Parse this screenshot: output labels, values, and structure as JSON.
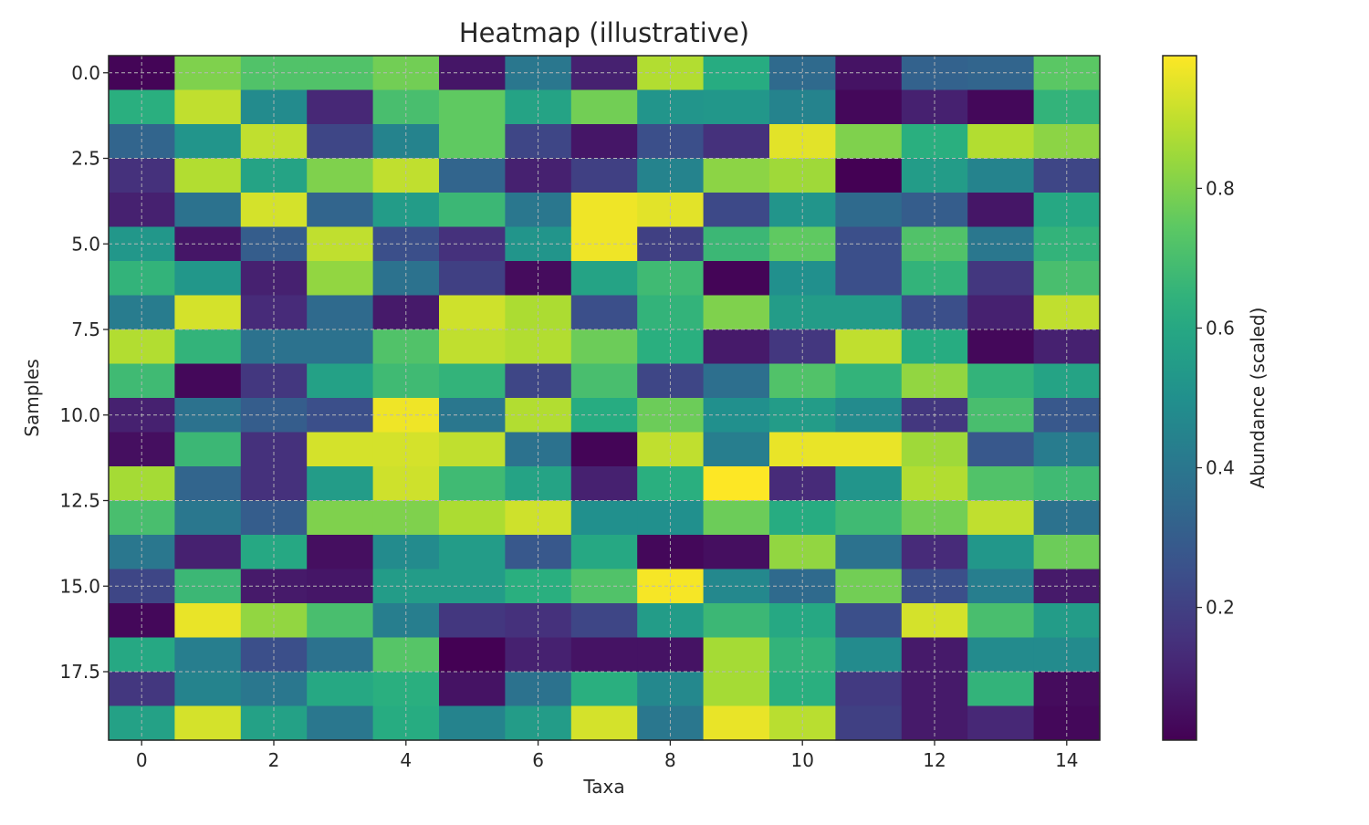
{
  "chart_data": {
    "type": "heatmap",
    "title": "Heatmap (illustrative)",
    "xlabel": "Taxa",
    "ylabel": "Samples",
    "colorbar_label": "Abundance (scaled)",
    "colormap": "viridis",
    "grid": true,
    "n_cols": 15,
    "n_rows": 20,
    "x_ticks": [
      0,
      2,
      4,
      6,
      8,
      10,
      12,
      14
    ],
    "y_ticks": [
      0.0,
      2.5,
      5.0,
      7.5,
      10.0,
      12.5,
      15.0,
      17.5
    ],
    "x_tick_labels": [
      "0",
      "2",
      "4",
      "6",
      "8",
      "10",
      "12",
      "14"
    ],
    "y_tick_labels": [
      "0.0",
      "2.5",
      "5.0",
      "7.5",
      "10.0",
      "12.5",
      "15.0",
      "17.5"
    ],
    "colorbar_ticks": [
      0.2,
      0.4,
      0.6,
      0.8
    ],
    "colorbar_tick_labels": [
      "0.2",
      "0.4",
      "0.6",
      "0.8"
    ],
    "colorbar_range": [
      0.01,
      0.99
    ],
    "values": [
      [
        0.02,
        0.8,
        0.72,
        0.72,
        0.78,
        0.07,
        0.4,
        0.1,
        0.88,
        0.62,
        0.35,
        0.06,
        0.32,
        0.33,
        0.74
      ],
      [
        0.63,
        0.9,
        0.48,
        0.12,
        0.7,
        0.75,
        0.58,
        0.78,
        0.52,
        0.53,
        0.45,
        0.03,
        0.1,
        0.03,
        0.65
      ],
      [
        0.33,
        0.52,
        0.9,
        0.22,
        0.45,
        0.75,
        0.22,
        0.07,
        0.25,
        0.15,
        0.95,
        0.8,
        0.63,
        0.88,
        0.82
      ],
      [
        0.15,
        0.88,
        0.58,
        0.8,
        0.9,
        0.33,
        0.1,
        0.2,
        0.45,
        0.82,
        0.85,
        0.01,
        0.55,
        0.45,
        0.22
      ],
      [
        0.1,
        0.38,
        0.93,
        0.33,
        0.55,
        0.67,
        0.4,
        0.97,
        0.95,
        0.23,
        0.52,
        0.35,
        0.3,
        0.07,
        0.6
      ],
      [
        0.53,
        0.07,
        0.3,
        0.9,
        0.25,
        0.15,
        0.52,
        0.97,
        0.2,
        0.67,
        0.75,
        0.25,
        0.72,
        0.4,
        0.65
      ],
      [
        0.65,
        0.53,
        0.1,
        0.83,
        0.38,
        0.2,
        0.04,
        0.58,
        0.68,
        0.02,
        0.5,
        0.25,
        0.65,
        0.17,
        0.7
      ],
      [
        0.42,
        0.93,
        0.13,
        0.35,
        0.08,
        0.92,
        0.87,
        0.25,
        0.65,
        0.8,
        0.55,
        0.55,
        0.25,
        0.1,
        0.9
      ],
      [
        0.88,
        0.65,
        0.38,
        0.38,
        0.72,
        0.9,
        0.88,
        0.77,
        0.63,
        0.08,
        0.17,
        0.9,
        0.62,
        0.03,
        0.1
      ],
      [
        0.68,
        0.03,
        0.17,
        0.57,
        0.68,
        0.65,
        0.22,
        0.7,
        0.22,
        0.37,
        0.72,
        0.65,
        0.83,
        0.65,
        0.58
      ],
      [
        0.1,
        0.38,
        0.3,
        0.25,
        0.97,
        0.4,
        0.88,
        0.62,
        0.77,
        0.5,
        0.55,
        0.48,
        0.17,
        0.7,
        0.28
      ],
      [
        0.05,
        0.67,
        0.15,
        0.93,
        0.93,
        0.9,
        0.38,
        0.02,
        0.9,
        0.43,
        0.96,
        0.96,
        0.85,
        0.28,
        0.42
      ],
      [
        0.86,
        0.33,
        0.15,
        0.55,
        0.92,
        0.68,
        0.58,
        0.1,
        0.63,
        0.99,
        0.13,
        0.52,
        0.88,
        0.72,
        0.68
      ],
      [
        0.7,
        0.4,
        0.3,
        0.8,
        0.8,
        0.87,
        0.92,
        0.5,
        0.5,
        0.77,
        0.62,
        0.68,
        0.78,
        0.9,
        0.38
      ],
      [
        0.4,
        0.1,
        0.6,
        0.05,
        0.48,
        0.55,
        0.28,
        0.6,
        0.03,
        0.05,
        0.83,
        0.38,
        0.13,
        0.53,
        0.77
      ],
      [
        0.22,
        0.67,
        0.08,
        0.07,
        0.55,
        0.55,
        0.63,
        0.72,
        0.98,
        0.47,
        0.35,
        0.78,
        0.25,
        0.43,
        0.08
      ],
      [
        0.03,
        0.96,
        0.83,
        0.7,
        0.43,
        0.17,
        0.15,
        0.22,
        0.55,
        0.67,
        0.6,
        0.25,
        0.93,
        0.7,
        0.55
      ],
      [
        0.6,
        0.43,
        0.25,
        0.38,
        0.73,
        0.01,
        0.1,
        0.06,
        0.06,
        0.86,
        0.65,
        0.48,
        0.08,
        0.48,
        0.48
      ],
      [
        0.17,
        0.45,
        0.4,
        0.6,
        0.63,
        0.06,
        0.38,
        0.63,
        0.47,
        0.86,
        0.63,
        0.18,
        0.08,
        0.65,
        0.04
      ],
      [
        0.57,
        0.93,
        0.57,
        0.4,
        0.62,
        0.45,
        0.55,
        0.93,
        0.4,
        0.96,
        0.89,
        0.2,
        0.08,
        0.12,
        0.03
      ]
    ]
  }
}
